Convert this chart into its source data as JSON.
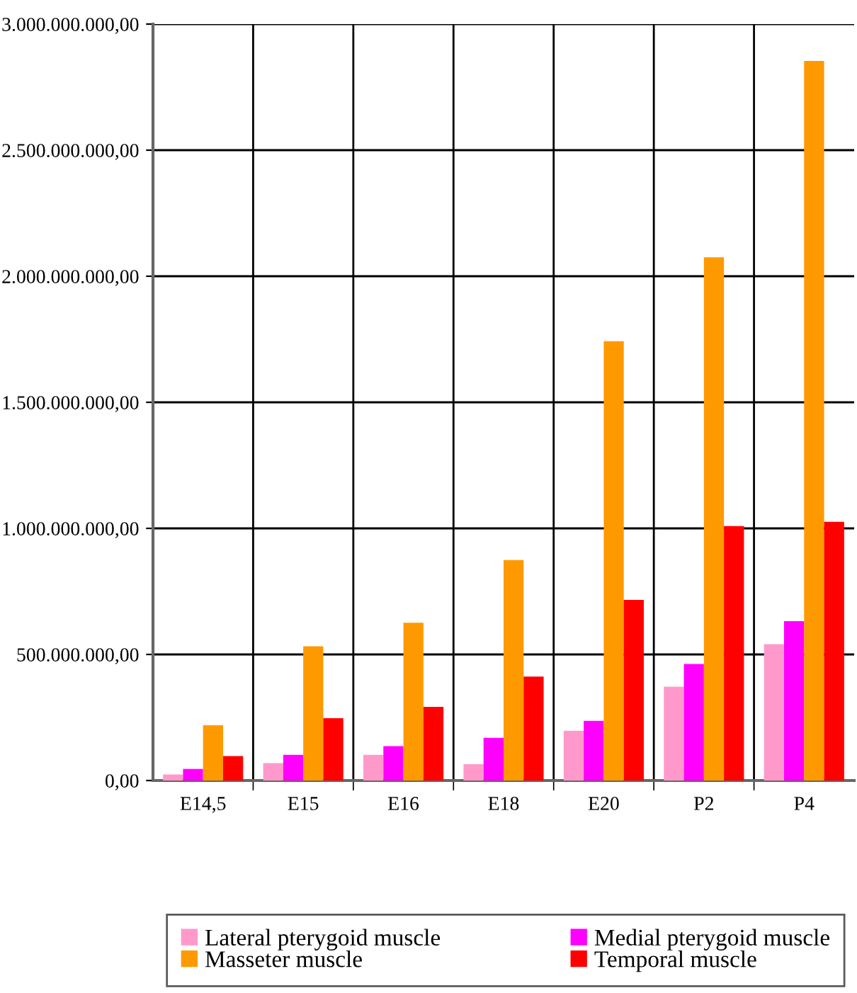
{
  "chart_data": {
    "type": "bar",
    "categories": [
      "E14,5",
      "E15",
      "E16",
      "E18",
      "E20",
      "P2",
      "P4"
    ],
    "series": [
      {
        "name": "Lateral pterygoid muscle",
        "color": "#ff99cc",
        "values": [
          24000000,
          69000000,
          102000000,
          65000000,
          197000000,
          372000000,
          541000000
        ]
      },
      {
        "name": "Medial pterygoid muscle",
        "color": "#ff00ff",
        "values": [
          46000000,
          102000000,
          136000000,
          169000000,
          237000000,
          462000000,
          632000000
        ]
      },
      {
        "name": "Masseter muscle",
        "color": "#ff9900",
        "values": [
          219000000,
          532000000,
          626000000,
          874000000,
          1742000000,
          2075000000,
          2854000000
        ]
      },
      {
        "name": "Temporal muscle",
        "color": "#ff0000",
        "values": [
          97000000,
          247000000,
          292000000,
          412000000,
          716000000,
          1009000000,
          1026000000
        ]
      }
    ],
    "ylim": [
      0,
      3000000000
    ],
    "yticks": [
      {
        "value": 0,
        "label": "0,00"
      },
      {
        "value": 500000000,
        "label": "500.000.000,00"
      },
      {
        "value": 1000000000,
        "label": "1.000.000.000,00"
      },
      {
        "value": 1500000000,
        "label": "1.500.000.000,00"
      },
      {
        "value": 2000000000,
        "label": "2.000.000.000,00"
      },
      {
        "value": 2500000000,
        "label": "2.500.000.000,00"
      },
      {
        "value": 3000000000,
        "label": "3.000.000.000,00"
      }
    ],
    "grid": true,
    "legend": "bottom"
  }
}
